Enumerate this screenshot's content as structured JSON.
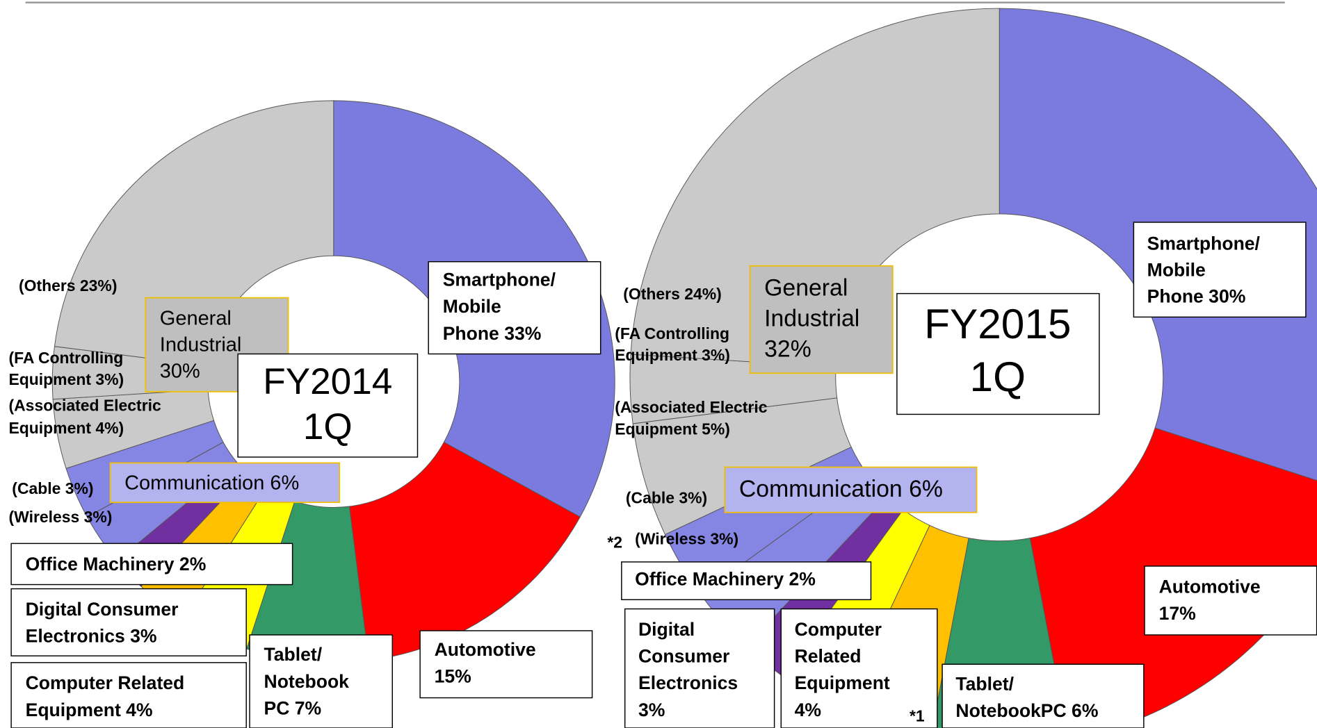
{
  "chart_data": [
    {
      "type": "pie",
      "values": [
        33,
        15,
        7,
        4,
        3,
        2,
        3,
        3,
        4,
        3,
        23
      ],
      "value_labels": [
        [
          "Smartphone/",
          "Mobile",
          "Phone 33%"
        ],
        [
          "Automotive",
          "15%"
        ],
        [
          "Tablet/",
          "Notebook",
          "PC 7%"
        ],
        [
          "Computer Related",
          "Equipment 4%"
        ],
        [
          "Digital Consumer",
          "Electronics 3%"
        ],
        [
          "Office Machinery 2%"
        ],
        [
          "(Wireless 3%)"
        ],
        [
          "(Cable 3%)"
        ],
        [
          "(Associated Electric",
          "Equipment  4%)"
        ],
        [
          "(FA Controlling",
          "Equipment 3%)"
        ],
        [
          "(Others 23%)"
        ]
      ],
      "colors": [
        "#7b7bdf",
        "#ff0000",
        "#339966",
        "#ffff00",
        "#ffc000",
        "#7030a0",
        "#8585e3",
        "#8585e3",
        "#cacaca",
        "#cacaca",
        "#cacaca"
      ],
      "center_label": [
        "FY2014",
        "1Q"
      ],
      "group_labels": [
        [
          "General",
          "Industrial",
          "30%"
        ],
        [
          "Communication 6%"
        ]
      ]
    },
    {
      "type": "pie",
      "values": [
        30,
        17,
        6,
        4,
        3,
        2,
        3,
        3,
        5,
        3,
        24
      ],
      "value_labels": [
        [
          "Smartphone/",
          "Mobile",
          "Phone 30%"
        ],
        [
          "Automotive",
          "17%"
        ],
        [
          "Tablet/",
          "NotebookPC 6%"
        ],
        [
          "Computer",
          "Related",
          "Equipment",
          "4%"
        ],
        [
          "Digital",
          "Consumer",
          "Electronics",
          "3%"
        ],
        [
          "Office Machinery 2%"
        ],
        [
          "(Wireless 3%)"
        ],
        [
          "(Cable 3%)"
        ],
        [
          "(Associated Electric",
          "Equipment  5%)"
        ],
        [
          "(FA Controlling",
          "Equipment 3%)"
        ],
        [
          "(Others 24%)"
        ]
      ],
      "colors": [
        "#7b7bdf",
        "#ff0000",
        "#339966",
        "#ffc000",
        "#ffff00",
        "#7030a0",
        "#8585e3",
        "#8585e3",
        "#cacaca",
        "#cacaca",
        "#cacaca"
      ],
      "center_label": [
        "FY2015",
        "1Q"
      ],
      "group_labels": [
        [
          "General",
          "Industrial",
          "32%"
        ],
        [
          "Communication 6%"
        ]
      ],
      "notes": [
        "*2",
        "*1"
      ]
    }
  ]
}
